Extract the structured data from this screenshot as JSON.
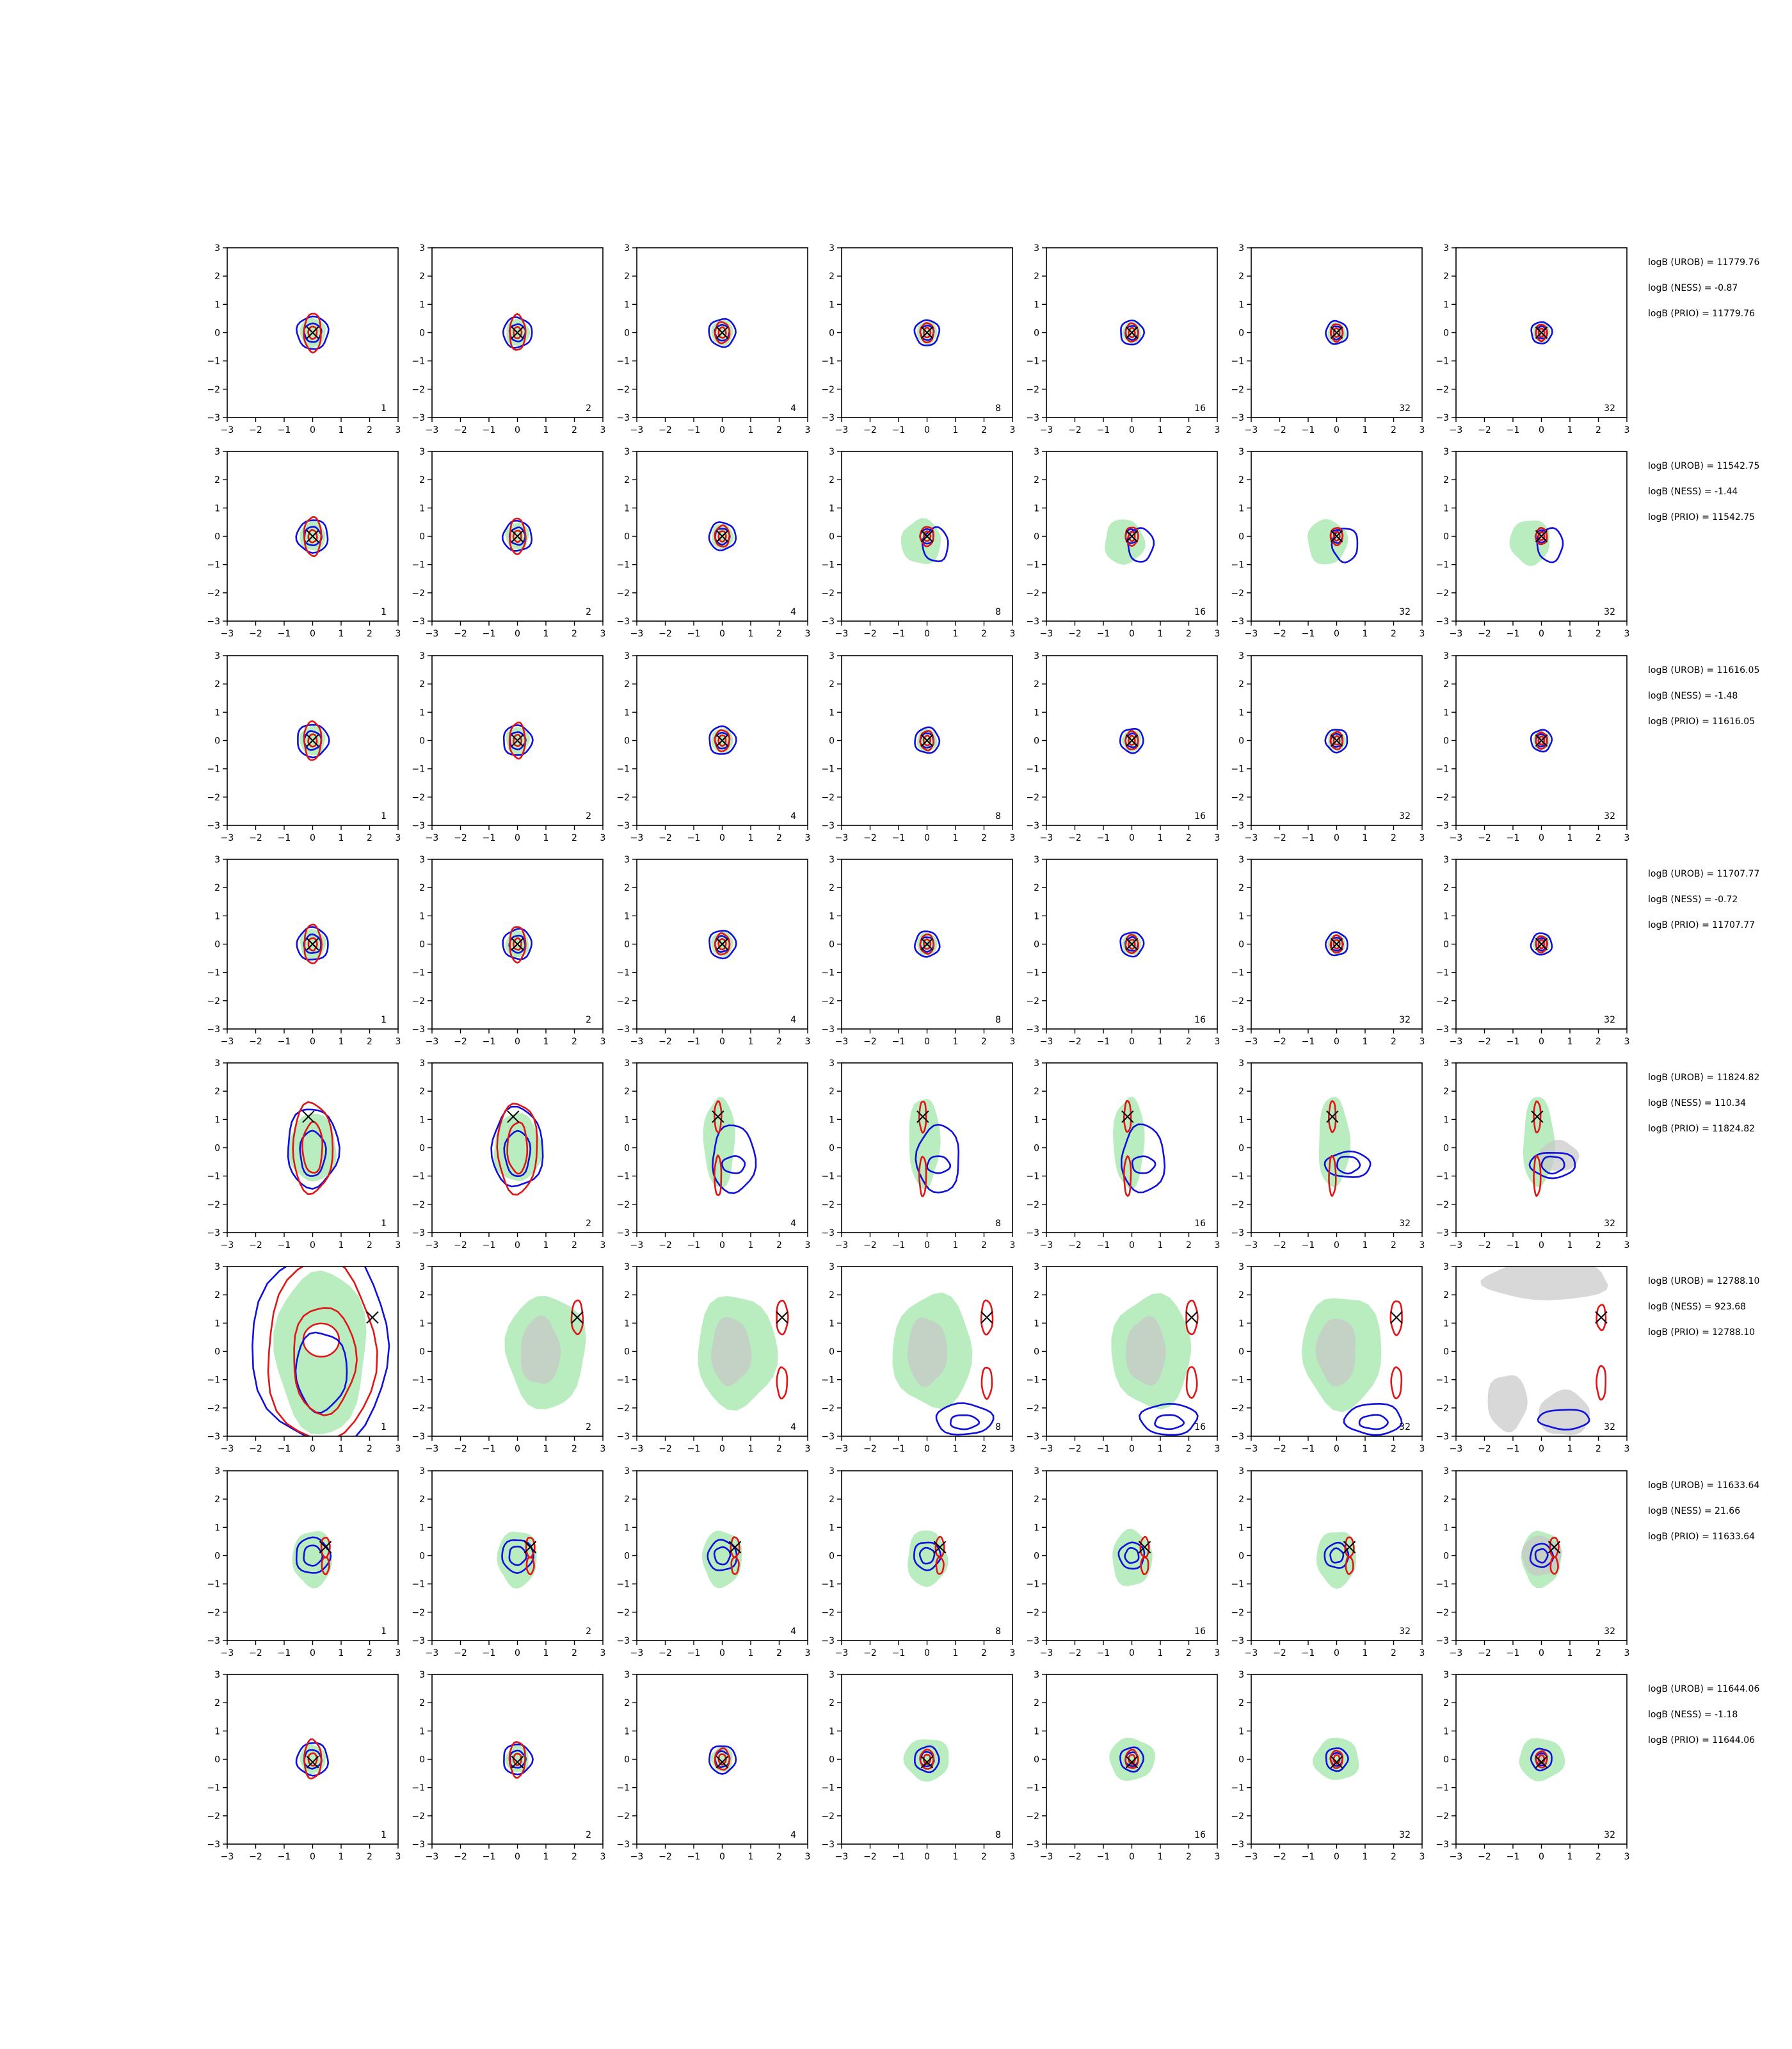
{
  "chart_data": {
    "type": "contour_grid",
    "rows": 8,
    "cols": 7,
    "xlim": [
      -3,
      3
    ],
    "ylim": [
      -3,
      3
    ],
    "xticks": [
      "−3",
      "−2",
      "−1",
      "0",
      "1",
      "2",
      "3"
    ],
    "yticks": [
      "3",
      "2",
      "1",
      "0",
      "−1",
      "−2",
      "−3"
    ],
    "panel_labels": [
      "1",
      "2",
      "4",
      "8",
      "16",
      "32",
      "32"
    ],
    "colors": {
      "blue_contour": "#1010dd",
      "red_contour": "#e01515",
      "green_fill": "#b9ecbf",
      "grey_fill": "#c8c8c8",
      "marker": "#000000"
    },
    "row_stats": [
      [
        "logB (UROB) = 11779.76",
        "logB (NESS) = -0.87",
        "logB (PRIO) = 11779.76"
      ],
      [
        "logB (UROB) = 11542.75",
        "logB (NESS) = -1.44",
        "logB (PRIO) = 11542.75"
      ],
      [
        "logB (UROB) = 11616.05",
        "logB (NESS) = -1.48",
        "logB (PRIO) = 11616.05"
      ],
      [
        "logB (UROB) = 11707.77",
        "logB (NESS) = -0.72",
        "logB (PRIO) = 11707.77"
      ],
      [
        "logB (UROB) = 11824.82",
        "logB (NESS) = 110.34",
        "logB (PRIO) = 11824.82"
      ],
      [
        "logB (UROB) = 12788.10",
        "logB (NESS) = 923.68",
        "logB (PRIO) = 12788.10"
      ],
      [
        "logB (UROB) = 11633.64",
        "logB (NESS) = 21.66",
        "logB (PRIO) = 11633.64"
      ],
      [
        "logB (UROB) = 11644.06",
        "logB (NESS) = -1.18",
        "logB (PRIO) = 11644.06"
      ]
    ],
    "true_points": [
      {
        "x": 0.0,
        "y": 0.0
      },
      {
        "x": 0.0,
        "y": 0.0
      },
      {
        "x": 0.0,
        "y": 0.0
      },
      {
        "x": 0.0,
        "y": 0.0
      },
      {
        "x": -0.15,
        "y": 1.1
      },
      {
        "x": 2.1,
        "y": 1.2
      },
      {
        "x": 0.45,
        "y": 0.3
      },
      {
        "x": 0.0,
        "y": -0.1
      }
    ]
  }
}
